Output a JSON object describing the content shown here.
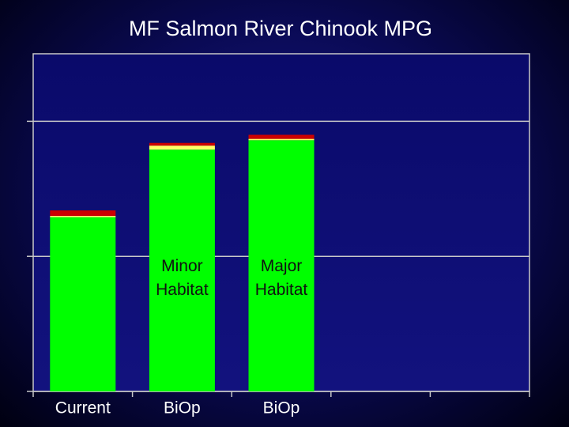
{
  "chart_data": {
    "type": "stacked_bar",
    "title": "MF Salmon River Chinook MPG",
    "categories": [
      "Current",
      "BiOp",
      "BiOp",
      null,
      null
    ],
    "bar_labels": [
      null,
      "Minor Habitat",
      "Major Habitat",
      null,
      null
    ],
    "series": [
      {
        "color": "#00ff00",
        "values": [
          1.29,
          1.79,
          1.86,
          null,
          null
        ]
      },
      {
        "color": "#ffff66",
        "values": [
          0.01,
          0.03,
          0.01,
          null,
          null
        ]
      },
      {
        "color": "#cc0000",
        "values": [
          0.04,
          0.02,
          0.03,
          null,
          null
        ]
      }
    ],
    "ylim": [
      0,
      2.5
    ],
    "yticks": [
      0,
      1,
      2
    ],
    "grid": true
  }
}
